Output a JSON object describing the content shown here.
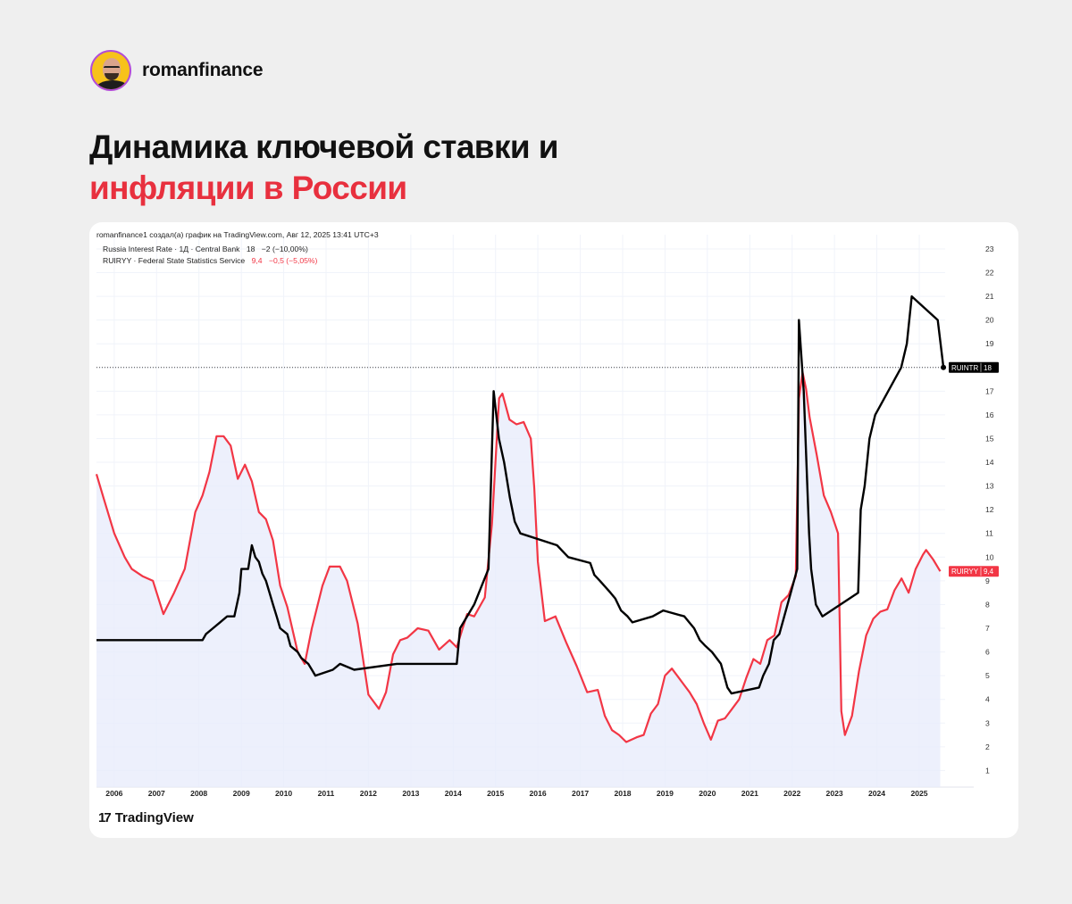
{
  "brand": {
    "name": "romanfinance"
  },
  "headline": {
    "line1": "Динамика ключевой ставки и",
    "line2": "инфляции в России"
  },
  "chart_header": {
    "credit": "romanfinance1 создал(а) график на TradingView.com, Авг 12, 2025 13:41 UTC+3",
    "legend_rate": "Russia Interest Rate · 1Д · Central Bank",
    "legend_rate_value": "18",
    "legend_rate_change": "−2 (−10,00%)",
    "legend_cpi": "RUIRYY · Federal State Statistics Service",
    "legend_cpi_value": "9,4",
    "legend_cpi_change": "−0,5 (−5,05%)"
  },
  "footer": {
    "logo_text": "TradingView",
    "logo_icon": "tradingview-logo-icon"
  },
  "colors": {
    "rate": "#000000",
    "inflation": "#f23645",
    "fill": "#e9ecfb",
    "accent": "#e8303e"
  },
  "chart_data": {
    "type": "line",
    "x_ticks": [
      "2006",
      "2007",
      "2008",
      "2009",
      "2010",
      "2011",
      "2012",
      "2013",
      "2014",
      "2015",
      "2016",
      "2017",
      "2018",
      "2019",
      "2020",
      "2021",
      "2022",
      "2023",
      "2024",
      "2025"
    ],
    "y_ticks": [
      1,
      2,
      3,
      4,
      5,
      6,
      7,
      8,
      9,
      10,
      11,
      12,
      13,
      14,
      15,
      16,
      17,
      18,
      19,
      20,
      21,
      22,
      23
    ],
    "xlim": [
      "2005-08-01",
      "2025-08-12"
    ],
    "ylim": [
      0.3,
      23.6
    ],
    "grid": true,
    "series": [
      {
        "name": "RUINTR",
        "color": "#000000",
        "last_value": "18",
        "points": [
          [
            "2005-08-01",
            6.5
          ],
          [
            "2008-02-01",
            6.5
          ],
          [
            "2008-03-01",
            6.75
          ],
          [
            "2008-05-01",
            7
          ],
          [
            "2008-07-01",
            7.25
          ],
          [
            "2008-09-01",
            7.5
          ],
          [
            "2008-11-01",
            7.5
          ],
          [
            "2008-12-15",
            8.5
          ],
          [
            "2009-01-01",
            9.5
          ],
          [
            "2009-03-01",
            9.5
          ],
          [
            "2009-04-01",
            10.5
          ],
          [
            "2009-05-01",
            10
          ],
          [
            "2009-06-01",
            9.8
          ],
          [
            "2009-07-01",
            9.3
          ],
          [
            "2009-08-01",
            9
          ],
          [
            "2009-09-01",
            8.5
          ],
          [
            "2009-10-01",
            8
          ],
          [
            "2009-11-01",
            7.5
          ],
          [
            "2009-12-01",
            7
          ],
          [
            "2010-02-01",
            6.75
          ],
          [
            "2010-03-01",
            6.25
          ],
          [
            "2010-05-01",
            6
          ],
          [
            "2010-06-01",
            5.75
          ],
          [
            "2010-08-01",
            5.5
          ],
          [
            "2010-09-01",
            5.25
          ],
          [
            "2010-10-01",
            5
          ],
          [
            "2011-03-01",
            5.25
          ],
          [
            "2011-05-01",
            5.5
          ],
          [
            "2011-09-01",
            5.25
          ],
          [
            "2012-09-01",
            5.5
          ],
          [
            "2014-02-01",
            5.5
          ],
          [
            "2014-03-01",
            7
          ],
          [
            "2014-05-01",
            7.5
          ],
          [
            "2014-07-01",
            8
          ],
          [
            "2014-11-01",
            9.5
          ],
          [
            "2014-12-16",
            17
          ],
          [
            "2015-01-30",
            15
          ],
          [
            "2015-03-16",
            14
          ],
          [
            "2015-05-05",
            12.5
          ],
          [
            "2015-06-16",
            11.5
          ],
          [
            "2015-08-03",
            11
          ],
          [
            "2016-06-14",
            10.5
          ],
          [
            "2016-09-19",
            10
          ],
          [
            "2017-03-27",
            9.75
          ],
          [
            "2017-05-02",
            9.25
          ],
          [
            "2017-06-19",
            9
          ],
          [
            "2017-09-18",
            8.5
          ],
          [
            "2017-10-30",
            8.25
          ],
          [
            "2017-12-18",
            7.75
          ],
          [
            "2018-02-12",
            7.5
          ],
          [
            "2018-03-26",
            7.25
          ],
          [
            "2018-09-17",
            7.5
          ],
          [
            "2018-12-17",
            7.75
          ],
          [
            "2019-06-17",
            7.5
          ],
          [
            "2019-07-29",
            7.25
          ],
          [
            "2019-09-09",
            7
          ],
          [
            "2019-10-28",
            6.5
          ],
          [
            "2019-12-16",
            6.25
          ],
          [
            "2020-02-10",
            6
          ],
          [
            "2020-04-27",
            5.5
          ],
          [
            "2020-06-22",
            4.5
          ],
          [
            "2020-07-27",
            4.25
          ],
          [
            "2021-03-22",
            4.5
          ],
          [
            "2021-04-26",
            5
          ],
          [
            "2021-06-15",
            5.5
          ],
          [
            "2021-07-26",
            6.5
          ],
          [
            "2021-09-13",
            6.75
          ],
          [
            "2021-10-25",
            7.5
          ],
          [
            "2021-12-20",
            8.5
          ],
          [
            "2022-02-14",
            9.5
          ],
          [
            "2022-02-28",
            20
          ],
          [
            "2022-04-11",
            17
          ],
          [
            "2022-05-04",
            14
          ],
          [
            "2022-05-27",
            11
          ],
          [
            "2022-06-14",
            9.5
          ],
          [
            "2022-07-25",
            8
          ],
          [
            "2022-09-19",
            7.5
          ],
          [
            "2023-07-24",
            8.5
          ],
          [
            "2023-08-15",
            12
          ],
          [
            "2023-09-18",
            13
          ],
          [
            "2023-10-30",
            15
          ],
          [
            "2023-12-18",
            16
          ],
          [
            "2024-07-29",
            18
          ],
          [
            "2024-09-16",
            19
          ],
          [
            "2024-10-28",
            21
          ],
          [
            "2025-06-09",
            20
          ],
          [
            "2025-07-28",
            18
          ]
        ]
      },
      {
        "name": "RUIRYY",
        "color": "#f23645",
        "last_value": "9,4",
        "points": [
          [
            "2005-08-01",
            13.5
          ],
          [
            "2005-10-01",
            12.5
          ],
          [
            "2006-01-01",
            11
          ],
          [
            "2006-04-01",
            10
          ],
          [
            "2006-06-01",
            9.5
          ],
          [
            "2006-09-01",
            9.2
          ],
          [
            "2006-12-01",
            9
          ],
          [
            "2007-03-01",
            7.6
          ],
          [
            "2007-06-01",
            8.5
          ],
          [
            "2007-09-01",
            9.5
          ],
          [
            "2007-12-01",
            11.9
          ],
          [
            "2008-02-01",
            12.6
          ],
          [
            "2008-04-01",
            13.6
          ],
          [
            "2008-06-01",
            15.1
          ],
          [
            "2008-08-01",
            15.1
          ],
          [
            "2008-10-01",
            14.7
          ],
          [
            "2008-12-01",
            13.3
          ],
          [
            "2009-02-01",
            13.9
          ],
          [
            "2009-04-01",
            13.2
          ],
          [
            "2009-06-01",
            11.9
          ],
          [
            "2009-08-01",
            11.6
          ],
          [
            "2009-10-01",
            10.7
          ],
          [
            "2009-12-01",
            8.8
          ],
          [
            "2010-02-01",
            7.9
          ],
          [
            "2010-05-01",
            6
          ],
          [
            "2010-07-01",
            5.5
          ],
          [
            "2010-09-01",
            7.0
          ],
          [
            "2010-12-01",
            8.8
          ],
          [
            "2011-02-01",
            9.6
          ],
          [
            "2011-05-01",
            9.6
          ],
          [
            "2011-07-01",
            9.0
          ],
          [
            "2011-10-01",
            7.2
          ],
          [
            "2012-01-01",
            4.2
          ],
          [
            "2012-04-01",
            3.6
          ],
          [
            "2012-06-01",
            4.3
          ],
          [
            "2012-08-01",
            5.9
          ],
          [
            "2012-10-01",
            6.5
          ],
          [
            "2012-12-01",
            6.6
          ],
          [
            "2013-03-01",
            7.0
          ],
          [
            "2013-06-01",
            6.9
          ],
          [
            "2013-09-01",
            6.1
          ],
          [
            "2013-12-01",
            6.5
          ],
          [
            "2014-02-01",
            6.2
          ],
          [
            "2014-05-01",
            7.6
          ],
          [
            "2014-07-01",
            7.5
          ],
          [
            "2014-10-01",
            8.3
          ],
          [
            "2014-12-01",
            11.4
          ],
          [
            "2015-02-01",
            16.7
          ],
          [
            "2015-03-01",
            16.9
          ],
          [
            "2015-05-01",
            15.8
          ],
          [
            "2015-07-01",
            15.6
          ],
          [
            "2015-09-01",
            15.7
          ],
          [
            "2015-11-01",
            15.0
          ],
          [
            "2015-12-01",
            12.9
          ],
          [
            "2016-01-01",
            9.8
          ],
          [
            "2016-03-01",
            7.3
          ],
          [
            "2016-06-01",
            7.5
          ],
          [
            "2016-09-01",
            6.4
          ],
          [
            "2016-12-01",
            5.4
          ],
          [
            "2017-03-01",
            4.3
          ],
          [
            "2017-06-01",
            4.4
          ],
          [
            "2017-08-01",
            3.3
          ],
          [
            "2017-10-01",
            2.7
          ],
          [
            "2017-12-01",
            2.5
          ],
          [
            "2018-02-01",
            2.2
          ],
          [
            "2018-05-01",
            2.4
          ],
          [
            "2018-07-01",
            2.5
          ],
          [
            "2018-09-01",
            3.4
          ],
          [
            "2018-11-01",
            3.8
          ],
          [
            "2019-01-01",
            5.0
          ],
          [
            "2019-03-01",
            5.3
          ],
          [
            "2019-06-01",
            4.7
          ],
          [
            "2019-08-01",
            4.3
          ],
          [
            "2019-10-01",
            3.8
          ],
          [
            "2019-12-01",
            3.0
          ],
          [
            "2020-02-01",
            2.3
          ],
          [
            "2020-04-01",
            3.1
          ],
          [
            "2020-06-01",
            3.2
          ],
          [
            "2020-08-01",
            3.6
          ],
          [
            "2020-10-01",
            4.0
          ],
          [
            "2020-12-01",
            4.9
          ],
          [
            "2021-02-01",
            5.7
          ],
          [
            "2021-04-01",
            5.5
          ],
          [
            "2021-06-01",
            6.5
          ],
          [
            "2021-08-01",
            6.7
          ],
          [
            "2021-10-01",
            8.1
          ],
          [
            "2021-12-01",
            8.4
          ],
          [
            "2022-02-01",
            9.2
          ],
          [
            "2022-03-01",
            16.7
          ],
          [
            "2022-04-01",
            17.8
          ],
          [
            "2022-05-01",
            17.1
          ],
          [
            "2022-06-01",
            15.9
          ],
          [
            "2022-08-01",
            14.3
          ],
          [
            "2022-10-01",
            12.6
          ],
          [
            "2022-12-01",
            11.9
          ],
          [
            "2023-02-01",
            11.0
          ],
          [
            "2023-03-01",
            3.5
          ],
          [
            "2023-04-01",
            2.5
          ],
          [
            "2023-06-01",
            3.3
          ],
          [
            "2023-08-01",
            5.2
          ],
          [
            "2023-10-01",
            6.7
          ],
          [
            "2023-12-01",
            7.4
          ],
          [
            "2024-02-01",
            7.7
          ],
          [
            "2024-04-01",
            7.8
          ],
          [
            "2024-06-01",
            8.6
          ],
          [
            "2024-08-01",
            9.1
          ],
          [
            "2024-10-01",
            8.5
          ],
          [
            "2024-12-01",
            9.5
          ],
          [
            "2025-02-01",
            10.1
          ],
          [
            "2025-03-01",
            10.3
          ],
          [
            "2025-05-01",
            9.9
          ],
          [
            "2025-07-01",
            9.4
          ]
        ]
      }
    ]
  }
}
